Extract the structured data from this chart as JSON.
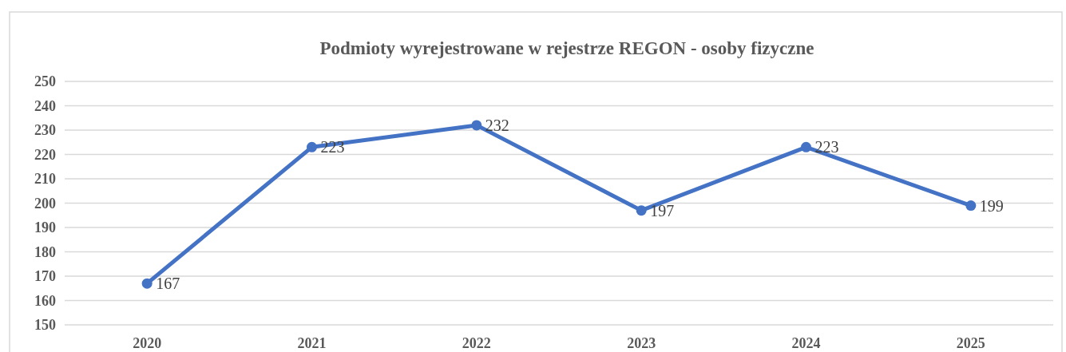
{
  "chart_data": {
    "type": "line",
    "title": "Podmioty wyrejestrowane w rejestrze REGON - osoby fizyczne",
    "categories": [
      "2020",
      "2021",
      "2022",
      "2023",
      "2024",
      "2025"
    ],
    "series": [
      {
        "color": "#4472c4",
        "values": [
          167,
          223,
          232,
          197,
          223,
          199
        ]
      }
    ],
    "ylim": [
      150,
      250
    ],
    "yticks": [
      150,
      160,
      170,
      180,
      190,
      200,
      210,
      220,
      230,
      240,
      250
    ],
    "grid": "y",
    "marker": "circle",
    "line_style": "solid",
    "data_labels": true
  }
}
